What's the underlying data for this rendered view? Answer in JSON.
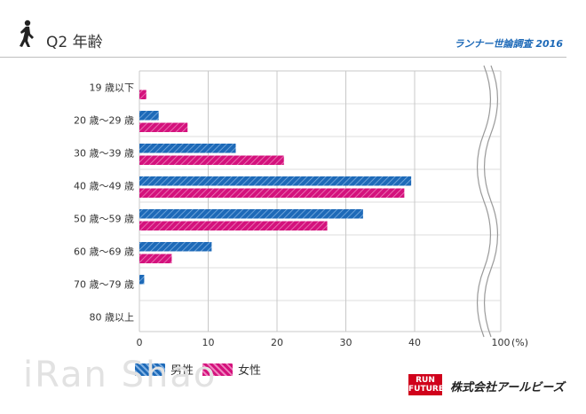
{
  "header": {
    "question": "Q2 年齢",
    "survey": "ランナー世論調査 2016"
  },
  "legend": {
    "male": "男性",
    "female": "女性"
  },
  "colors": {
    "male": "#1e6ab8",
    "female": "#d4127d",
    "grid": "#c8c8c8"
  },
  "footer": {
    "watermark": "iRan Shao",
    "logo_text": "RUN FUTURE",
    "company": "株式会社アールビーズ"
  },
  "chart_data": {
    "type": "bar",
    "orientation": "horizontal",
    "title": "Q2 年齢",
    "xlabel": "(%)",
    "ylabel": "",
    "xlim": [
      0,
      100
    ],
    "xticks": [
      0,
      10,
      20,
      30,
      40,
      100
    ],
    "axis_break": "between 40 and 100",
    "unit_label": "(%)",
    "categories": [
      "19 歳以下",
      "20 歳～29 歳",
      "30 歳～39 歳",
      "40 歳～49 歳",
      "50 歳～59 歳",
      "60 歳～69 歳",
      "70 歳～79 歳",
      "80 歳以上"
    ],
    "series": [
      {
        "name": "男性",
        "values": [
          0,
          2.8,
          14,
          39.5,
          32.5,
          10.5,
          0.7,
          0
        ]
      },
      {
        "name": "女性",
        "values": [
          1,
          7,
          21,
          38.5,
          27.3,
          4.7,
          0,
          0
        ]
      }
    ],
    "grid": true,
    "legend_position": "bottom-left"
  }
}
